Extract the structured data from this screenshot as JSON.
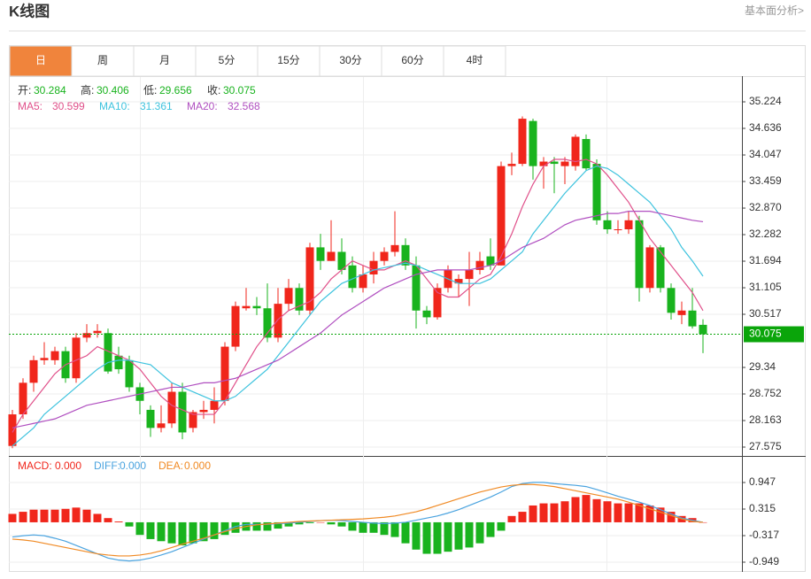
{
  "header": {
    "title": "K线图",
    "link": "基本面分析>"
  },
  "tabs": [
    "日",
    "周",
    "月",
    "5分",
    "15分",
    "30分",
    "60分",
    "4时"
  ],
  "active_tab": 0,
  "chart_data": {
    "type": "candlestick",
    "up_color": "#f0261b",
    "down_color": "#19b31e",
    "ohlc_labels": [
      "开:",
      "高:",
      "低:",
      "收:"
    ],
    "open": [
      27.6,
      28.3,
      29.0,
      29.5,
      29.5,
      29.7,
      29.1,
      30.0,
      30.1,
      30.1,
      29.6,
      29.5,
      28.9,
      28.4,
      28.0,
      28.1,
      28.8,
      28.0,
      28.35,
      28.4,
      28.6,
      29.8,
      30.65,
      30.7,
      30.65,
      30.0,
      30.75,
      31.1,
      30.6,
      32.0,
      31.7,
      31.9,
      31.6,
      31.1,
      31.4,
      31.7,
      31.9,
      32.05,
      31.6,
      30.6,
      30.45,
      31.1,
      31.2,
      31.3,
      31.5,
      31.8,
      31.6,
      33.8,
      33.85,
      34.8,
      33.8,
      33.9,
      33.8,
      33.8,
      34.4,
      33.85,
      32.6,
      32.4,
      32.4,
      32.6,
      31.1,
      32.0,
      31.1,
      30.5,
      30.6,
      30.284
    ],
    "high": [
      28.4,
      29.1,
      29.6,
      29.9,
      29.8,
      29.8,
      30.1,
      30.3,
      30.3,
      30.2,
      29.8,
      29.6,
      29.0,
      28.5,
      28.5,
      29.0,
      29.0,
      28.4,
      28.6,
      28.9,
      29.9,
      30.8,
      31.1,
      30.9,
      31.2,
      31.1,
      31.3,
      31.2,
      32.1,
      32.3,
      32.6,
      32.2,
      31.8,
      31.6,
      31.9,
      32.0,
      32.8,
      32.2,
      31.8,
      30.7,
      31.2,
      31.6,
      31.4,
      31.9,
      31.9,
      32.2,
      33.9,
      34.1,
      34.9,
      34.85,
      34.0,
      34.0,
      34.0,
      34.5,
      34.5,
      33.95,
      32.8,
      32.6,
      32.8,
      32.7,
      32.05,
      32.05,
      31.2,
      30.8,
      31.1,
      30.406
    ],
    "low": [
      27.55,
      28.2,
      28.8,
      29.4,
      29.4,
      29.0,
      29.0,
      29.9,
      30.0,
      29.2,
      29.2,
      28.8,
      28.3,
      27.8,
      27.9,
      28.0,
      27.75,
      27.9,
      28.2,
      28.1,
      28.5,
      29.7,
      30.6,
      30.5,
      29.9,
      29.9,
      30.6,
      30.5,
      30.5,
      31.5,
      31.7,
      31.4,
      31.0,
      31.0,
      31.2,
      31.6,
      31.8,
      31.5,
      30.2,
      30.3,
      30.4,
      31.0,
      30.9,
      30.7,
      31.4,
      31.5,
      31.6,
      33.6,
      33.8,
      33.5,
      33.3,
      33.2,
      33.4,
      33.7,
      33.7,
      32.5,
      32.3,
      32.3,
      32.3,
      30.8,
      31.0,
      31.0,
      30.4,
      30.3,
      30.2,
      29.656
    ],
    "close": [
      28.3,
      29.0,
      29.5,
      29.55,
      29.7,
      29.1,
      30.0,
      30.1,
      30.15,
      29.25,
      29.3,
      28.9,
      28.6,
      28.0,
      28.1,
      28.8,
      27.9,
      28.35,
      28.4,
      28.6,
      29.8,
      30.7,
      30.7,
      30.65,
      30.0,
      30.75,
      31.1,
      30.6,
      32.0,
      31.7,
      31.9,
      31.5,
      31.1,
      31.4,
      31.7,
      31.9,
      32.05,
      31.6,
      30.6,
      30.45,
      31.1,
      31.5,
      31.3,
      31.5,
      31.7,
      31.6,
      33.8,
      33.85,
      34.85,
      33.8,
      33.9,
      33.85,
      33.9,
      34.45,
      33.75,
      32.6,
      32.4,
      32.4,
      32.6,
      31.1,
      32.0,
      31.1,
      30.55,
      30.6,
      30.25,
      30.075
    ],
    "ma": [
      {
        "name": "MA5:",
        "color": "#e0508a",
        "values": [
          27.9,
          28.3,
          28.6,
          28.9,
          29.2,
          29.4,
          29.5,
          29.6,
          29.8,
          29.7,
          29.6,
          29.5,
          29.3,
          29.0,
          28.7,
          28.5,
          28.4,
          28.3,
          28.3,
          28.3,
          28.6,
          29.0,
          29.4,
          29.8,
          30.1,
          30.4,
          30.6,
          30.7,
          30.8,
          31.0,
          31.3,
          31.5,
          31.7,
          31.6,
          31.5,
          31.5,
          31.6,
          31.7,
          31.6,
          31.3,
          31.0,
          30.9,
          30.9,
          31.1,
          31.3,
          31.4,
          31.8,
          32.3,
          32.9,
          33.4,
          33.8,
          33.95,
          33.95,
          33.9,
          33.95,
          33.85,
          33.6,
          33.3,
          33.0,
          32.6,
          32.2,
          31.9,
          31.6,
          31.3,
          31.0,
          30.599
        ]
      },
      {
        "name": "MA10:",
        "color": "#3ec3de",
        "values": [
          27.6,
          27.8,
          28.0,
          28.3,
          28.5,
          28.7,
          28.9,
          29.1,
          29.3,
          29.45,
          29.5,
          29.5,
          29.45,
          29.4,
          29.2,
          29.0,
          28.9,
          28.8,
          28.7,
          28.6,
          28.6,
          28.7,
          28.9,
          29.1,
          29.3,
          29.6,
          29.9,
          30.2,
          30.5,
          30.8,
          31.0,
          31.2,
          31.3,
          31.4,
          31.5,
          31.55,
          31.6,
          31.65,
          31.6,
          31.5,
          31.4,
          31.3,
          31.2,
          31.2,
          31.2,
          31.3,
          31.5,
          31.7,
          31.9,
          32.3,
          32.6,
          32.9,
          33.2,
          33.45,
          33.7,
          33.8,
          33.75,
          33.6,
          33.4,
          33.2,
          33.0,
          32.7,
          32.4,
          32.0,
          31.7,
          31.361
        ]
      },
      {
        "name": "MA20:",
        "color": "#b04fc0",
        "values": [
          28.0,
          28.05,
          28.1,
          28.15,
          28.2,
          28.3,
          28.4,
          28.5,
          28.55,
          28.6,
          28.65,
          28.7,
          28.75,
          28.8,
          28.85,
          28.9,
          28.9,
          28.95,
          29.0,
          29.0,
          29.05,
          29.1,
          29.2,
          29.3,
          29.4,
          29.5,
          29.65,
          29.8,
          29.95,
          30.1,
          30.3,
          30.5,
          30.65,
          30.8,
          30.95,
          31.1,
          31.2,
          31.3,
          31.4,
          31.45,
          31.5,
          31.5,
          31.5,
          31.5,
          31.55,
          31.6,
          31.7,
          31.85,
          32.0,
          32.1,
          32.2,
          32.35,
          32.5,
          32.6,
          32.65,
          32.7,
          32.75,
          32.75,
          32.8,
          32.8,
          32.8,
          32.75,
          32.7,
          32.65,
          32.6,
          32.568
        ]
      }
    ],
    "ylim": [
      27.379,
      35.754
    ],
    "yticks": [
      35.224,
      34.636,
      34.047,
      33.459,
      {
        "value": 32.87,
        "label": "32.870"
      },
      32.282,
      31.694,
      31.105,
      30.517,
      29.34,
      28.752,
      28.163,
      27.575
    ],
    "grid": true,
    "last_price_color": "#0aa50a",
    "macd": {
      "type": "macd",
      "histogram": {
        "name": "MACD:",
        "value_label": "0.000",
        "up_color": "#f0261b",
        "down_color": "#19b31e",
        "values": [
          0.2,
          0.25,
          0.3,
          0.3,
          0.3,
          0.32,
          0.35,
          0.3,
          0.2,
          0.1,
          0.02,
          -0.1,
          -0.3,
          -0.4,
          -0.45,
          -0.5,
          -0.55,
          -0.5,
          -0.45,
          -0.4,
          -0.3,
          -0.25,
          -0.2,
          -0.2,
          -0.2,
          -0.15,
          -0.1,
          -0.05,
          -0.02,
          0.0,
          -0.05,
          -0.1,
          -0.2,
          -0.25,
          -0.25,
          -0.3,
          -0.35,
          -0.5,
          -0.65,
          -0.75,
          -0.75,
          -0.7,
          -0.65,
          -0.6,
          -0.5,
          -0.35,
          -0.2,
          0.15,
          0.25,
          0.4,
          0.45,
          0.45,
          0.5,
          0.6,
          0.65,
          0.55,
          0.5,
          0.45,
          0.45,
          0.45,
          0.4,
          0.35,
          0.25,
          0.15,
          0.1,
          0.0
        ]
      },
      "series": [
        {
          "name": "DIFF:",
          "value_label": "0.000",
          "color": "#4aa3df",
          "values": [
            -0.35,
            -0.32,
            -0.3,
            -0.32,
            -0.38,
            -0.45,
            -0.55,
            -0.65,
            -0.75,
            -0.85,
            -0.9,
            -0.92,
            -0.9,
            -0.85,
            -0.78,
            -0.7,
            -0.6,
            -0.5,
            -0.4,
            -0.3,
            -0.2,
            -0.1,
            -0.05,
            -0.05,
            -0.05,
            -0.03,
            -0.02,
            0.0,
            0.02,
            0.04,
            0.05,
            0.04,
            0.02,
            0.0,
            -0.02,
            -0.03,
            -0.02,
            0.0,
            0.05,
            0.1,
            0.15,
            0.22,
            0.3,
            0.4,
            0.5,
            0.6,
            0.72,
            0.85,
            0.92,
            0.95,
            0.95,
            0.92,
            0.9,
            0.88,
            0.85,
            0.78,
            0.7,
            0.62,
            0.55,
            0.48,
            0.4,
            0.3,
            0.2,
            0.1,
            0.05,
            0.0
          ]
        },
        {
          "name": "DEA:",
          "value_label": "0.000",
          "color": "#f08a24",
          "values": [
            -0.4,
            -0.42,
            -0.45,
            -0.5,
            -0.55,
            -0.6,
            -0.65,
            -0.7,
            -0.75,
            -0.78,
            -0.8,
            -0.8,
            -0.78,
            -0.74,
            -0.68,
            -0.6,
            -0.52,
            -0.45,
            -0.38,
            -0.3,
            -0.22,
            -0.15,
            -0.1,
            -0.06,
            -0.04,
            -0.02,
            0.0,
            0.02,
            0.03,
            0.04,
            0.05,
            0.06,
            0.07,
            0.08,
            0.1,
            0.12,
            0.15,
            0.2,
            0.25,
            0.32,
            0.4,
            0.48,
            0.56,
            0.64,
            0.72,
            0.78,
            0.84,
            0.88,
            0.9,
            0.9,
            0.88,
            0.85,
            0.8,
            0.75,
            0.7,
            0.65,
            0.6,
            0.55,
            0.48,
            0.4,
            0.32,
            0.24,
            0.16,
            0.08,
            0.02,
            0.0
          ]
        }
      ],
      "ylim": [
        -1.16,
        1.579
      ],
      "yticks": [
        0.947,
        0.315,
        -0.317,
        -0.949
      ],
      "grid": true
    }
  }
}
